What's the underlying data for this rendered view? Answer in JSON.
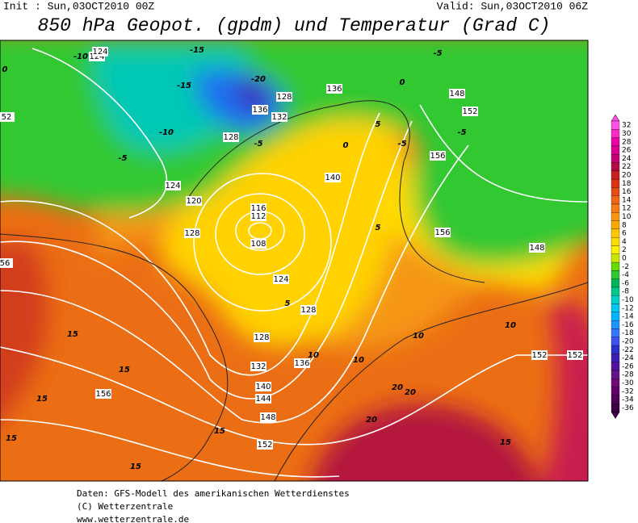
{
  "header": {
    "init": "Init : Sun,03OCT2010 00Z",
    "valid": "Valid: Sun,03OCT2010 06Z",
    "title": "850 hPa Geopot. (gpdm) und Temperatur (Grad C)"
  },
  "colorbar": [
    {
      "label": 32,
      "color": "#ff50e6"
    },
    {
      "label": 30,
      "color": "#ff28c8"
    },
    {
      "label": 28,
      "color": "#f000aa"
    },
    {
      "label": 26,
      "color": "#dc0090"
    },
    {
      "label": 24,
      "color": "#c80078"
    },
    {
      "label": 22,
      "color": "#b40a46"
    },
    {
      "label": 20,
      "color": "#c81e1e"
    },
    {
      "label": 18,
      "color": "#dc3214"
    },
    {
      "label": 16,
      "color": "#e64b14"
    },
    {
      "label": 14,
      "color": "#f06414"
    },
    {
      "label": 12,
      "color": "#f57d14"
    },
    {
      "label": 10,
      "color": "#fa9614"
    },
    {
      "label": 8,
      "color": "#ffaa00"
    },
    {
      "label": 6,
      "color": "#ffc800"
    },
    {
      "label": 4,
      "color": "#ffdc00"
    },
    {
      "label": 2,
      "color": "#fff000"
    },
    {
      "label": 0,
      "color": "#c8e600"
    },
    {
      "label": -2,
      "color": "#64dc00"
    },
    {
      "label": -4,
      "color": "#32c832"
    },
    {
      "label": -6,
      "color": "#00b45a"
    },
    {
      "label": -8,
      "color": "#00c88c"
    },
    {
      "label": -10,
      "color": "#00d2c8"
    },
    {
      "label": -12,
      "color": "#00c8f0"
    },
    {
      "label": -14,
      "color": "#00b4ff"
    },
    {
      "label": -16,
      "color": "#1e96ff"
    },
    {
      "label": -18,
      "color": "#3278ff"
    },
    {
      "label": -20,
      "color": "#3c50f0"
    },
    {
      "label": -22,
      "color": "#2832c8"
    },
    {
      "label": -24,
      "color": "#3c1eb4"
    },
    {
      "label": -26,
      "color": "#5014a0"
    },
    {
      "label": -28,
      "color": "#64148c"
    },
    {
      "label": -30,
      "color": "#6e0a78"
    },
    {
      "label": -32,
      "color": "#64006e"
    },
    {
      "label": -34,
      "color": "#50005a"
    },
    {
      "label": -36,
      "color": "#3c0046"
    }
  ],
  "map_labels": [
    120,
    124,
    124,
    136,
    132,
    128,
    128,
    136,
    152,
    148,
    156,
    156,
    148,
    124,
    120,
    116,
    112,
    108,
    128,
    124,
    128,
    128,
    132,
    136,
    140,
    144,
    148,
    152,
    152,
    156,
    152,
    140,
    52,
    56
  ],
  "temp_labels": [
    -10,
    -15,
    -15,
    -5,
    -10,
    -20,
    -5,
    -5,
    -5,
    0,
    0,
    5,
    5,
    5,
    10,
    10,
    15,
    15,
    15,
    15,
    15,
    20,
    20,
    20,
    15,
    15,
    10,
    10,
    -5,
    0
  ],
  "footer": [
    "Daten: GFS-Modell des amerikanischen Wetterdienstes",
    "(C) Wetterzentrale",
    "www.wetterzentrale.de"
  ]
}
